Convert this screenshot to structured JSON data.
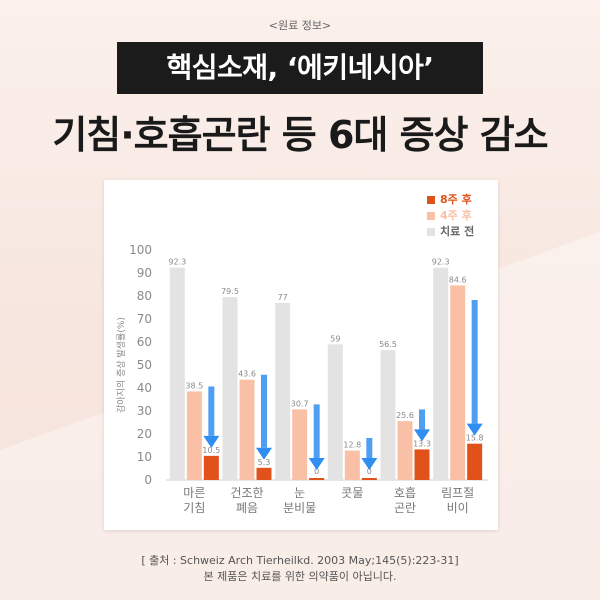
{
  "header": {
    "source_tag": "<원료 정보>",
    "headline": "핵심소재, ‘에키네시아’",
    "subheadline": "기침·호흡곤란 등 6대 증상 감소"
  },
  "footer": {
    "citation": "[ 출처 : Schweiz Arch Tierheilkd. 2003 May;145(5):223-31]",
    "disclaimer": "본 제품은 치료를 위한 의약품이 아닙니다."
  },
  "colors": {
    "before": "#e3e3e3",
    "week4": "#f9c0a5",
    "week8": "#e0521a",
    "arrow": "#2f8ef0",
    "headline_bg": "#1b1b1b"
  },
  "chart_data": {
    "type": "bar",
    "ylabel": "감아지의 증상 발생률(%)",
    "ylim": [
      0,
      100
    ],
    "yticks": [
      0,
      10,
      20,
      30,
      40,
      50,
      60,
      70,
      80,
      90,
      100
    ],
    "categories": [
      [
        "마른",
        "기침"
      ],
      [
        "건조한",
        "폐음"
      ],
      [
        "눈",
        "분비물"
      ],
      [
        "콧물"
      ],
      [
        "호흡",
        "곤란"
      ],
      [
        "림프절",
        "비이"
      ]
    ],
    "series": [
      {
        "name": "치료 전",
        "color_key": "before",
        "values": [
          92.3,
          79.5,
          77,
          59,
          56.5,
          92.3
        ]
      },
      {
        "name": "4주 후",
        "color_key": "week4",
        "values": [
          38.5,
          43.6,
          30.7,
          12.8,
          25.6,
          84.6
        ]
      },
      {
        "name": "8주 후",
        "color_key": "week8",
        "values": [
          10.5,
          5.3,
          0,
          0,
          13.3,
          15.8
        ]
      }
    ],
    "legend_order": [
      "8주 후",
      "4주 후",
      "치료 전"
    ],
    "legend_position": "top-right",
    "grid": false
  }
}
